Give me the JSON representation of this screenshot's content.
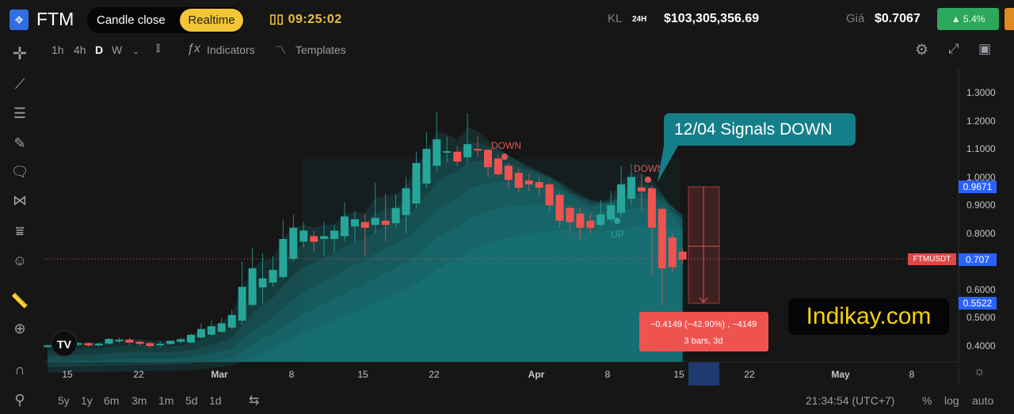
{
  "header": {
    "symbol": "FTM",
    "logo_icon": "fantom-logo-icon",
    "mode_candle_close": "Candle close",
    "mode_realtime": "Realtime",
    "countdown": "09:25:02",
    "volume_label": "KL",
    "volume_period": "24H",
    "volume_value": "$103,305,356.69",
    "price_label": "Giá",
    "price_value": "$0.7067",
    "change": "▲ 5.4%",
    "change_color": "#2aa85b"
  },
  "toolbar": {
    "intervals": [
      "1h",
      "4h",
      "D",
      "W"
    ],
    "active_interval": "D",
    "indicators": "Indicators",
    "templates": "Templates"
  },
  "bottom": {
    "ranges": [
      "5y",
      "1y",
      "6m",
      "3m",
      "1m",
      "5d",
      "1d"
    ],
    "time": "21:34:54 (UTC+7)",
    "percent": "%",
    "log": "log",
    "auto": "auto"
  },
  "annotations": {
    "callout": "12/04 Signals DOWN",
    "down1": "DOWN",
    "down2": "DOWN",
    "up": "UP",
    "measure_line1": "−0.4149 (−42.90%) , −4149",
    "measure_line2": "3 bars, 3d",
    "watermark": "Indikay.com"
  },
  "price_tags": {
    "high": "0.9671",
    "symbol": "FTMUSDT",
    "last": "0.707",
    "low": "0.5522"
  },
  "colors": {
    "up": "#26a69a",
    "down": "#ef5350",
    "band": "#1a9aa3",
    "callout": "#157f89",
    "tag_blue": "#2962ff",
    "tag_red": "#e04848"
  },
  "chart_data": {
    "type": "candlestick",
    "y_ticks": [
      "1.3000",
      "1.2000",
      "1.1000",
      "1.0000",
      "0.9000",
      "0.8000",
      "0.6000",
      "0.5000",
      "0.4000"
    ],
    "ylim": [
      0.37,
      1.36
    ],
    "x_ticks": [
      "15",
      "22",
      "Mar",
      "8",
      "15",
      "22",
      "Apr",
      "8",
      "15",
      "22",
      "May",
      "8"
    ],
    "start_date": "Feb 13",
    "ohlc": [
      [
        0.4,
        0.405,
        0.395,
        0.402
      ],
      [
        0.402,
        0.41,
        0.398,
        0.405
      ],
      [
        0.405,
        0.412,
        0.4,
        0.408
      ],
      [
        0.405,
        0.415,
        0.4,
        0.41
      ],
      [
        0.41,
        0.413,
        0.397,
        0.402
      ],
      [
        0.402,
        0.412,
        0.398,
        0.408
      ],
      [
        0.408,
        0.428,
        0.405,
        0.425
      ],
      [
        0.42,
        0.43,
        0.41,
        0.422
      ],
      [
        0.422,
        0.428,
        0.403,
        0.412
      ],
      [
        0.415,
        0.42,
        0.4,
        0.407
      ],
      [
        0.41,
        0.415,
        0.393,
        0.4
      ],
      [
        0.405,
        0.418,
        0.395,
        0.408
      ],
      [
        0.407,
        0.42,
        0.403,
        0.418
      ],
      [
        0.415,
        0.428,
        0.41,
        0.424
      ],
      [
        0.412,
        0.445,
        0.41,
        0.44
      ],
      [
        0.43,
        0.48,
        0.425,
        0.46
      ],
      [
        0.44,
        0.49,
        0.435,
        0.47
      ],
      [
        0.45,
        0.5,
        0.447,
        0.48
      ],
      [
        0.465,
        0.53,
        0.46,
        0.51
      ],
      [
        0.49,
        0.7,
        0.475,
        0.61
      ],
      [
        0.546,
        0.75,
        0.54,
        0.676
      ],
      [
        0.608,
        0.73,
        0.55,
        0.64
      ],
      [
        0.625,
        0.72,
        0.61,
        0.67
      ],
      [
        0.645,
        0.85,
        0.64,
        0.78
      ],
      [
        0.71,
        0.866,
        0.7,
        0.82
      ],
      [
        0.77,
        0.84,
        0.75,
        0.81
      ],
      [
        0.79,
        0.81,
        0.735,
        0.77
      ],
      [
        0.78,
        0.84,
        0.72,
        0.79
      ],
      [
        0.78,
        0.83,
        0.73,
        0.81
      ],
      [
        0.79,
        0.91,
        0.77,
        0.86
      ],
      [
        0.825,
        0.88,
        0.77,
        0.85
      ],
      [
        0.84,
        0.87,
        0.72,
        0.82
      ],
      [
        0.83,
        0.98,
        0.8,
        0.855
      ],
      [
        0.845,
        0.94,
        0.77,
        0.83
      ],
      [
        0.836,
        0.94,
        0.82,
        0.89
      ],
      [
        0.865,
        1.0,
        0.8,
        0.96
      ],
      [
        0.906,
        1.09,
        0.89,
        1.05
      ],
      [
        0.977,
        1.16,
        0.96,
        1.1
      ],
      [
        1.04,
        1.23,
        1.02,
        1.134
      ],
      [
        1.09,
        1.145,
        1.05,
        1.092
      ],
      [
        1.09,
        1.11,
        1.04,
        1.055
      ],
      [
        1.07,
        1.227,
        1.05,
        1.117
      ],
      [
        1.1,
        1.145,
        1.07,
        1.098
      ],
      [
        1.097,
        1.1,
        1.0,
        1.035
      ],
      [
        1.066,
        1.08,
        1.0,
        1.01
      ],
      [
        1.04,
        1.05,
        0.96,
        0.99
      ],
      [
        1.015,
        1.03,
        0.945,
        0.962
      ],
      [
        0.988,
        1.01,
        0.95,
        0.974
      ],
      [
        0.982,
        1.0,
        0.93,
        0.962
      ],
      [
        0.974,
        0.98,
        0.88,
        0.9
      ],
      [
        0.937,
        0.945,
        0.82,
        0.845
      ],
      [
        0.89,
        0.9,
        0.8,
        0.84
      ],
      [
        0.87,
        0.89,
        0.78,
        0.82
      ],
      [
        0.845,
        0.87,
        0.8,
        0.82
      ],
      [
        0.83,
        0.92,
        0.82,
        0.867
      ],
      [
        0.85,
        0.95,
        0.84,
        0.9
      ],
      [
        0.873,
        1.04,
        0.86,
        0.974
      ],
      [
        0.923,
        1.047,
        0.9,
        1.0
      ],
      [
        0.963,
        1.01,
        0.88,
        0.949
      ],
      [
        0.96,
        0.97,
        0.65,
        0.82
      ],
      [
        0.887,
        0.89,
        0.546,
        0.676
      ],
      [
        0.785,
        0.8,
        0.66,
        0.68
      ],
      [
        0.735,
        0.75,
        0.69,
        0.707
      ]
    ],
    "last_price": 0.707
  }
}
